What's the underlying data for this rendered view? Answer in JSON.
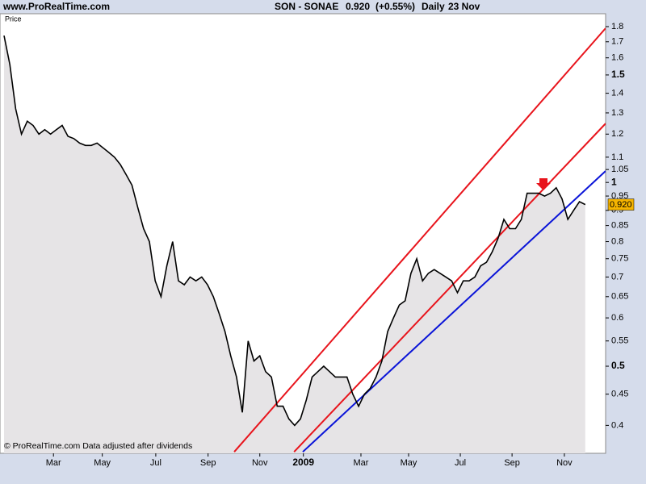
{
  "chart_data": {
    "type": "line",
    "source": "www.ProRealTime.com",
    "title": "SON - SONAE",
    "last_price": "0.920",
    "change": "(+0.55%)",
    "period": "Daily",
    "date": "23 Nov",
    "y_label": "Price",
    "footer": "© ProRealTime.com  Data adjusted after dividends",
    "log": true,
    "color": "#000000",
    "fill": "#e6e4e6",
    "values": [
      1.74,
      1.56,
      1.32,
      1.2,
      1.26,
      1.24,
      1.2,
      1.22,
      1.2,
      1.22,
      1.24,
      1.19,
      1.18,
      1.16,
      1.15,
      1.15,
      1.16,
      1.14,
      1.12,
      1.1,
      1.07,
      1.03,
      0.99,
      0.91,
      0.84,
      0.8,
      0.69,
      0.65,
      0.73,
      0.8,
      0.69,
      0.68,
      0.7,
      0.69,
      0.7,
      0.68,
      0.65,
      0.61,
      0.57,
      0.52,
      0.48,
      0.42,
      0.55,
      0.51,
      0.52,
      0.49,
      0.48,
      0.43,
      0.43,
      0.41,
      0.4,
      0.41,
      0.44,
      0.48,
      0.49,
      0.5,
      0.49,
      0.48,
      0.48,
      0.48,
      0.45,
      0.43,
      0.45,
      0.46,
      0.48,
      0.51,
      0.57,
      0.6,
      0.63,
      0.64,
      0.71,
      0.75,
      0.69,
      0.71,
      0.72,
      0.71,
      0.7,
      0.69,
      0.66,
      0.69,
      0.69,
      0.7,
      0.73,
      0.74,
      0.77,
      0.81,
      0.87,
      0.84,
      0.84,
      0.87,
      0.96,
      0.96,
      0.96,
      0.95,
      0.96,
      0.98,
      0.94,
      0.87,
      0.9,
      0.93,
      0.92
    ],
    "xlim": [
      -0.7,
      103.5
    ],
    "xticks": [
      {
        "value": 8.5,
        "label": "Mar"
      },
      {
        "value": 16.9,
        "label": "May"
      },
      {
        "value": 26.1,
        "label": "Jul"
      },
      {
        "value": 35.1,
        "label": "Sep"
      },
      {
        "value": 44,
        "label": "Nov"
      },
      {
        "value": 51.5,
        "label": "2009"
      },
      {
        "value": 61.4,
        "label": "Mar"
      },
      {
        "value": 69.6,
        "label": "May"
      },
      {
        "value": 78.5,
        "label": "Jul"
      },
      {
        "value": 87.4,
        "label": "Sep"
      },
      {
        "value": 96.4,
        "label": "Nov"
      }
    ],
    "ylim": [
      0.36,
      1.884
    ],
    "yticks": [
      0.4,
      0.45,
      0.5,
      0.55,
      0.6,
      0.65,
      0.7,
      0.75,
      0.8,
      0.85,
      0.9,
      0.95,
      1,
      1.05,
      1.1,
      1.2,
      1.3,
      1.4,
      1.5,
      1.6,
      1.7,
      1.8
    ],
    "trendlines": [
      {
        "color": "#e8141c",
        "start": [
          39.6,
          0.362
        ],
        "end": [
          103.5,
          1.789
        ]
      },
      {
        "color": "#e8141c",
        "start": [
          49.9,
          0.362
        ],
        "end": [
          103.5,
          1.249
        ]
      },
      {
        "color": "#0a14d8",
        "start": [
          51.4,
          0.362
        ],
        "end": [
          103.5,
          1.044
        ]
      }
    ]
  }
}
